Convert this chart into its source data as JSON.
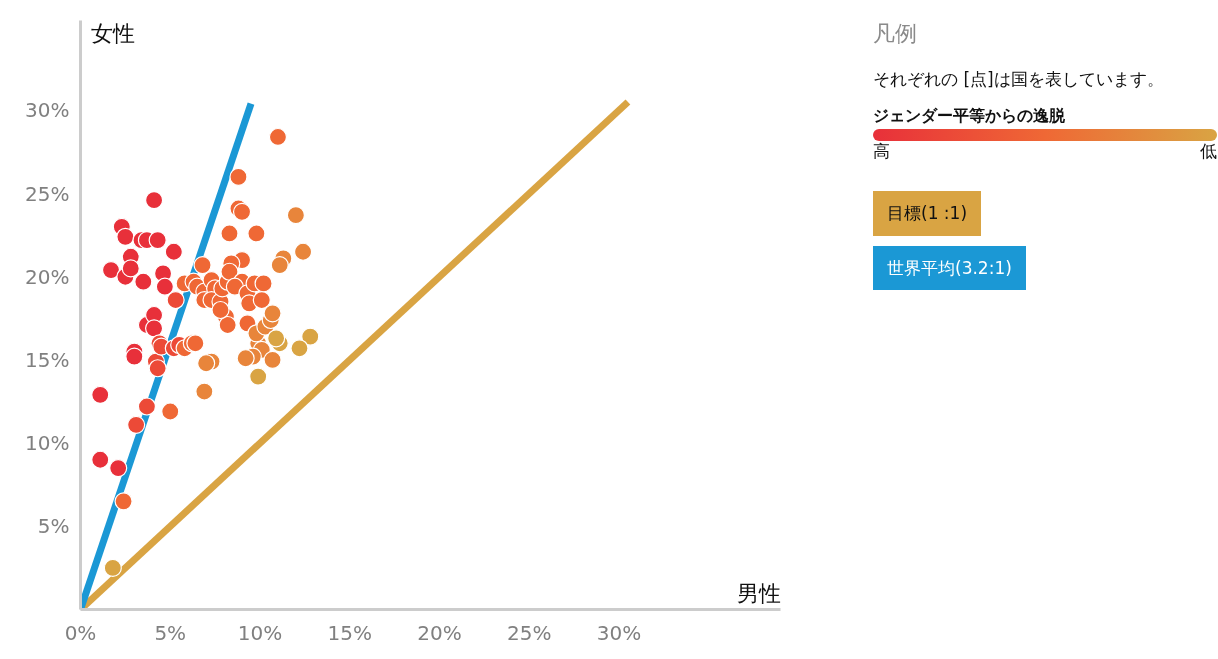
{
  "chart_data": {
    "type": "scatter",
    "xlabel": "男性",
    "ylabel": "女性",
    "legend_title": "凡例",
    "annotations": [
      "それぞれの [点]は国を表しています。",
      "ジェンダー平等からの逸脱",
      "高",
      "低"
    ],
    "xlim": [
      0,
      39
    ],
    "ylim": [
      0,
      35.4
    ],
    "xticks": [
      {
        "value": 0,
        "label": "0%"
      },
      {
        "value": 5,
        "label": "5%"
      },
      {
        "value": 10,
        "label": "10%"
      },
      {
        "value": 15,
        "label": "15%"
      },
      {
        "value": 20,
        "label": "20%"
      },
      {
        "value": 25,
        "label": "25%"
      },
      {
        "value": 30,
        "label": "30%"
      }
    ],
    "yticks": [
      {
        "value": 5,
        "label": "5%"
      },
      {
        "value": 10,
        "label": "10%"
      },
      {
        "value": 15,
        "label": "15%"
      },
      {
        "value": 20,
        "label": "20%"
      },
      {
        "value": 25,
        "label": "25%"
      },
      {
        "value": 30,
        "label": "30%"
      }
    ],
    "grid": false,
    "legend": "right",
    "series": [
      {
        "name": "目標(1 :1)",
        "type": "line",
        "color": "#d9a443",
        "x": [
          0,
          30.5
        ],
        "values": [
          0,
          30.5
        ],
        "marker": "none"
      },
      {
        "name": "世界平均(3.2:1)",
        "type": "line",
        "color": "#1b98d5",
        "x": [
          0,
          9.5
        ],
        "values": [
          0,
          30.4
        ],
        "marker": "none"
      },
      {
        "type": "scatter",
        "marker": "circle",
        "x": [
          1.1,
          1.1,
          2.1,
          2.4,
          1.8,
          1.7,
          2.3,
          2.5,
          2.5,
          2.8,
          2.8,
          3.4,
          3.7,
          4.3,
          4.1,
          3.5,
          3.0,
          3.0,
          3.1,
          3.7,
          3.7,
          4.1,
          4.1,
          4.2,
          4.3,
          4.4,
          4.5,
          4.6,
          4.7,
          5.2,
          5.3,
          5.0,
          5.2,
          5.5,
          5.8,
          6.2,
          6.4,
          5.8,
          6.3,
          6.8,
          6.9,
          7.3,
          7.0,
          6.5,
          6.9,
          6.9,
          7.3,
          7.5,
          7.3,
          7.8,
          7.9,
          8.2,
          8.1,
          8.2,
          7.8,
          8.8,
          8.8,
          9.0,
          8.3,
          9.0,
          8.4,
          8.3,
          9.0,
          8.6,
          9.8,
          11.0,
          12.0,
          12.4,
          11.3,
          11.1,
          9.3,
          9.7,
          10.2,
          9.4,
          9.3,
          10.1,
          9.9,
          10.1,
          9.6,
          9.8,
          10.3,
          10.6,
          10.7,
          11.1,
          9.9,
          9.2,
          12.8,
          12.2,
          10.9,
          10.7
        ],
        "values": [
          12.9,
          9.0,
          8.5,
          6.5,
          2.5,
          20.4,
          23.0,
          22.4,
          20.0,
          21.2,
          20.5,
          22.2,
          22.2,
          22.2,
          24.6,
          19.7,
          15.5,
          15.2,
          11.1,
          12.2,
          17.1,
          17.7,
          16.9,
          14.9,
          14.5,
          16.0,
          15.8,
          20.2,
          19.4,
          21.5,
          18.6,
          11.9,
          15.7,
          15.9,
          15.7,
          16.0,
          16.0,
          19.6,
          19.7,
          20.7,
          13.1,
          14.9,
          14.8,
          19.4,
          19.1,
          18.6,
          19.8,
          19.3,
          18.6,
          18.5,
          19.3,
          19.7,
          17.6,
          17.1,
          18.0,
          26.0,
          24.1,
          23.9,
          22.6,
          21.0,
          20.8,
          20.3,
          19.7,
          19.4,
          22.6,
          28.4,
          23.7,
          21.5,
          21.1,
          20.7,
          19.0,
          19.6,
          19.6,
          18.4,
          17.2,
          18.6,
          16.0,
          15.6,
          15.2,
          16.6,
          17.0,
          17.4,
          17.8,
          16.0,
          14.0,
          15.1,
          16.4,
          15.7,
          16.3,
          15.0
        ],
        "colors": [
          "#e8303a",
          "#e8303a",
          "#e8303a",
          "#ef6835",
          "#d9a443",
          "#e8303a",
          "#e8303a",
          "#e8303a",
          "#e8303a",
          "#e8303a",
          "#e8303a",
          "#e8303a",
          "#e8303a",
          "#e8303a",
          "#e8303a",
          "#e8303a",
          "#e8303a",
          "#e8303a",
          "#ec4a37",
          "#ec4a37",
          "#e8303a",
          "#e8303a",
          "#e8303a",
          "#ec4a37",
          "#ec4a37",
          "#ec4a37",
          "#ec4a37",
          "#e8303a",
          "#e8303a",
          "#e8303a",
          "#ec4a37",
          "#ef6835",
          "#ec4a37",
          "#ec4a37",
          "#ef6835",
          "#ef6835",
          "#ef6835",
          "#ef6835",
          "#ef6835",
          "#ef6835",
          "#e8853b",
          "#e8853b",
          "#e8853b",
          "#ef6835",
          "#ef6835",
          "#ef6835",
          "#ef6835",
          "#ef6835",
          "#ef6835",
          "#ef6835",
          "#ef6835",
          "#ef6835",
          "#ef6835",
          "#ef6835",
          "#ef6835",
          "#ef6835",
          "#ef6835",
          "#ef6835",
          "#ef6835",
          "#ef6835",
          "#ef6835",
          "#ef6835",
          "#ef6835",
          "#ef6835",
          "#ef6835",
          "#ef6835",
          "#e8853b",
          "#e8853b",
          "#e8853b",
          "#e8853b",
          "#ef6835",
          "#ef6835",
          "#ef6835",
          "#ef6835",
          "#ef6835",
          "#ef6835",
          "#e8853b",
          "#e8853b",
          "#e8853b",
          "#e8853b",
          "#e8853b",
          "#e8853b",
          "#e8853b",
          "#d9a443",
          "#d9a443",
          "#e8853b",
          "#d9a443",
          "#d9a443",
          "#d9a443",
          "#e8853b"
        ]
      }
    ]
  }
}
